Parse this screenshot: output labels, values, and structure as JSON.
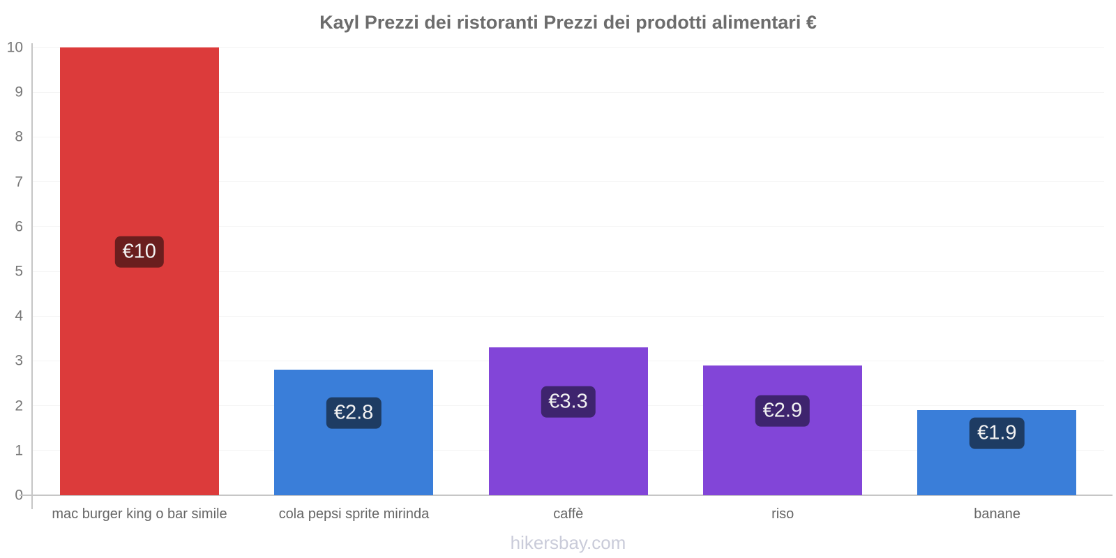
{
  "title": "Kayl Prezzi dei ristoranti Prezzi dei prodotti alimentari €",
  "footer": "hikersbay.com",
  "colors": {
    "title_text": "#6c6c6c",
    "axis_line": "#c6c6c6",
    "gridline": "#f4f4f4",
    "tick_text": "#767676",
    "category_text": "#666666",
    "badge_text": "#f2f2f2",
    "watermark_text": "#c9cbd9",
    "background": "#ffffff"
  },
  "chart_data": {
    "type": "bar",
    "title": "Kayl Prezzi dei ristoranti Prezzi dei prodotti alimentari €",
    "categories": [
      "mac burger king o bar simile",
      "cola pepsi sprite mirinda",
      "caffè",
      "riso",
      "banane"
    ],
    "values": [
      10,
      2.8,
      3.3,
      2.9,
      1.9
    ],
    "value_labels": [
      "€10",
      "€2.8",
      "€3.3",
      "€2.9",
      "€1.9"
    ],
    "bar_colors": [
      "#dc3b3b",
      "#3a7ed9",
      "#8245d8",
      "#8245d8",
      "#3a7ed9"
    ],
    "badge_colors": [
      "#6a1e1e",
      "#1e3c63",
      "#3e246e",
      "#3e246e",
      "#1e3c63"
    ],
    "currency": "€",
    "xlabel": "",
    "ylabel": "",
    "ylim": [
      0,
      10
    ],
    "y_tick_labels": [
      "0",
      "1",
      "2",
      "3",
      "4",
      "5",
      "6",
      "7",
      "8",
      "9",
      "10"
    ],
    "grid": true,
    "legend": "none",
    "watermark": "hikersbay.com"
  }
}
